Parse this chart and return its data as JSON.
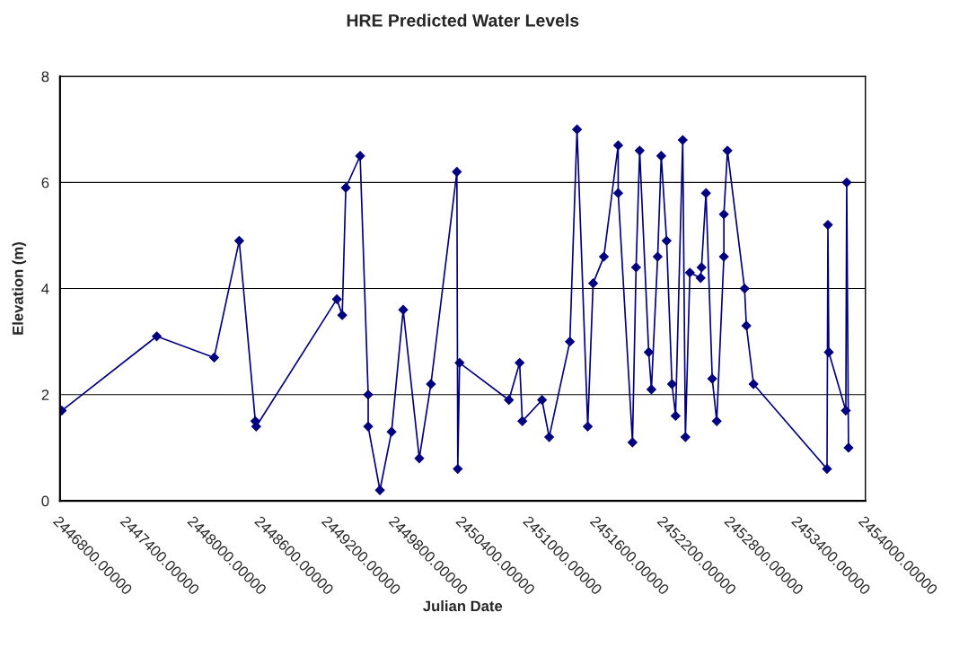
{
  "chart_data": {
    "type": "line",
    "title": "HRE Predicted Water Levels",
    "xlabel": "Julian Date",
    "ylabel": "Elevation (m)",
    "xlim": [
      2446800,
      2454000
    ],
    "xticks": [
      {
        "value": 2446800,
        "label": "2446800.00000"
      },
      {
        "value": 2447400,
        "label": "2447400.00000"
      },
      {
        "value": 2448000,
        "label": "2448000.00000"
      },
      {
        "value": 2448600,
        "label": "2448600.00000"
      },
      {
        "value": 2449200,
        "label": "2449200.00000"
      },
      {
        "value": 2449800,
        "label": "2449800.00000"
      },
      {
        "value": 2450400,
        "label": "2450400.00000"
      },
      {
        "value": 2451000,
        "label": "2451000.00000"
      },
      {
        "value": 2451600,
        "label": "2451600.00000"
      },
      {
        "value": 2452200,
        "label": "2452200.00000"
      },
      {
        "value": 2452800,
        "label": "2452800.00000"
      },
      {
        "value": 2453400,
        "label": "2453400.00000"
      },
      {
        "value": 2454000,
        "label": "2454000.00000"
      }
    ],
    "ylim": [
      0,
      8
    ],
    "yticks": [
      0,
      2,
      4,
      6,
      8
    ],
    "grid": "y",
    "marker": "diamond",
    "line_style": "solid",
    "x": [
      2446816,
      2447665,
      2448178,
      2448402,
      2448546,
      2448554,
      2449275,
      2449323,
      2449355,
      2449483,
      2449555,
      2449555,
      2449660,
      2449764,
      2449868,
      2450012,
      2450116,
      2450348,
      2450356,
      2450372,
      2450813,
      2450909,
      2450933,
      2451109,
      2451173,
      2451358,
      2451422,
      2451518,
      2451566,
      2451662,
      2451790,
      2451790,
      2451918,
      2451950,
      2451982,
      2452063,
      2452087,
      2452143,
      2452175,
      2452223,
      2452271,
      2452303,
      2452367,
      2452391,
      2452431,
      2452527,
      2452535,
      2452575,
      2452631,
      2452671,
      2452735,
      2452735,
      2452767,
      2452920,
      2452936,
      2453000,
      2453657,
      2453665,
      2453673,
      2453825,
      2453833,
      2453849
    ],
    "series": [
      {
        "color": "#000080",
        "values": [
          1.7,
          3.1,
          2.7,
          4.9,
          1.5,
          1.4,
          3.8,
          3.5,
          5.9,
          6.5,
          2.0,
          1.4,
          0.2,
          1.3,
          3.6,
          0.8,
          2.2,
          6.2,
          0.6,
          2.6,
          1.9,
          2.6,
          1.5,
          1.9,
          1.2,
          3.0,
          7.0,
          1.4,
          4.1,
          4.6,
          6.7,
          5.8,
          1.1,
          4.4,
          6.6,
          2.8,
          2.1,
          4.6,
          6.5,
          4.9,
          2.2,
          1.6,
          6.8,
          1.2,
          4.3,
          4.2,
          4.4,
          5.8,
          2.3,
          1.5,
          4.6,
          5.4,
          6.6,
          4.0,
          3.3,
          2.2,
          0.6,
          5.2,
          2.8,
          1.7,
          6.0,
          1.0
        ]
      }
    ]
  }
}
